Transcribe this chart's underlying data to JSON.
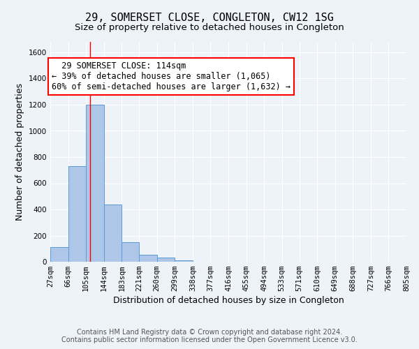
{
  "title": "29, SOMERSET CLOSE, CONGLETON, CW12 1SG",
  "subtitle": "Size of property relative to detached houses in Congleton",
  "xlabel": "Distribution of detached houses by size in Congleton",
  "ylabel": "Number of detached properties",
  "bin_edges": [
    27,
    66,
    105,
    144,
    183,
    221,
    260,
    299,
    338,
    377,
    416,
    455,
    494,
    533,
    571,
    610,
    649,
    688,
    727,
    766,
    805
  ],
  "bar_heights": [
    110,
    730,
    1200,
    435,
    150,
    55,
    30,
    10,
    0,
    0,
    0,
    0,
    0,
    0,
    0,
    0,
    0,
    0,
    0,
    0
  ],
  "bar_color": "#aec6e8",
  "bar_edge_color": "#5b9bd5",
  "vline_x": 114,
  "vline_color": "red",
  "annotation_text": "  29 SOMERSET CLOSE: 114sqm\n← 39% of detached houses are smaller (1,065)\n60% of semi-detached houses are larger (1,632) →",
  "annotation_box_color": "white",
  "annotation_box_edge_color": "red",
  "ylim": [
    0,
    1680
  ],
  "yticks": [
    0,
    200,
    400,
    600,
    800,
    1000,
    1200,
    1400,
    1600
  ],
  "bg_color": "#eef2f9",
  "footer_text": "Contains HM Land Registry data © Crown copyright and database right 2024.\nContains public sector information licensed under the Open Government Licence v3.0.",
  "title_fontsize": 11,
  "subtitle_fontsize": 9.5,
  "xlabel_fontsize": 9,
  "ylabel_fontsize": 9,
  "tick_fontsize": 7.5,
  "annotation_fontsize": 8.5,
  "footer_fontsize": 7
}
